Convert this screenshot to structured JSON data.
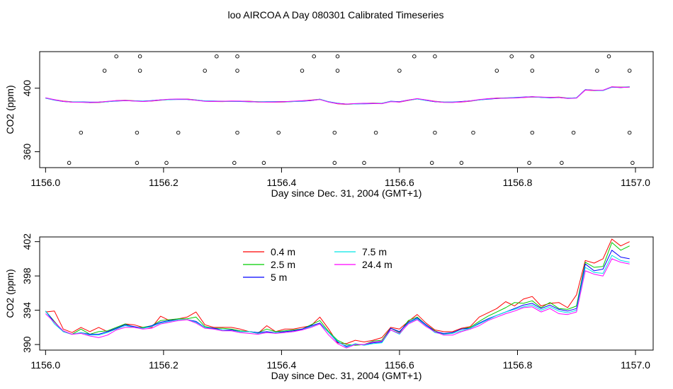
{
  "page": {
    "title": "loo AIRCOA A  Day 080301  Calibrated Timeseries"
  },
  "chart_data": [
    {
      "type": "scatter",
      "xlabel": "Day since Dec. 31, 2004 (GMT+1)",
      "ylabel": "CO2 (ppm)",
      "xlim": [
        1155.99,
        1157.03
      ],
      "ylim": [
        350,
        423
      ],
      "xticks": [
        1156.0,
        1156.2,
        1156.4,
        1156.6,
        1156.8,
        1157.0
      ],
      "xtick_labels": [
        "1156.0",
        "1156.2",
        "1156.4",
        "1156.6",
        "1156.8",
        "1157.0"
      ],
      "yticks": [
        360,
        400
      ],
      "ytick_labels": [
        "360",
        "400"
      ],
      "grid": false,
      "markers": {
        "x": [
          1156.04,
          1156.06,
          1156.1,
          1156.12,
          1156.155,
          1156.155,
          1156.16,
          1156.16,
          1156.205,
          1156.225,
          1156.27,
          1156.29,
          1156.32,
          1156.325,
          1156.325,
          1156.325,
          1156.37,
          1156.395,
          1156.435,
          1156.455,
          1156.49,
          1156.49,
          1156.495,
          1156.495,
          1156.54,
          1156.56,
          1156.6,
          1156.625,
          1156.655,
          1156.66,
          1156.66,
          1156.705,
          1156.725,
          1156.765,
          1156.79,
          1156.82,
          1156.825,
          1156.825,
          1156.825,
          1156.875,
          1156.895,
          1156.935,
          1156.955,
          1156.99,
          1156.99,
          1156.995
        ],
        "y": [
          353,
          372,
          411,
          420,
          353,
          372,
          411,
          420,
          353,
          372,
          411,
          420,
          353,
          372,
          411,
          420,
          353,
          372,
          411,
          420,
          353,
          372,
          411,
          420,
          353,
          372,
          411,
          420,
          353,
          372,
          420,
          353,
          372,
          411,
          420,
          353,
          372,
          411,
          420,
          353,
          372,
          411,
          420,
          372,
          411,
          353
        ]
      },
      "series": [
        {
          "name": "0.4 m",
          "color": "#ff0000"
        },
        {
          "name": "2.5 m",
          "color": "#00cd00"
        },
        {
          "name": "5 m",
          "color": "#0000ff"
        },
        {
          "name": "7.5 m",
          "color": "#00e5e5"
        },
        {
          "name": "24.4 m",
          "color": "#ff00ff"
        }
      ],
      "x": [
        1156.0,
        1156.015,
        1156.03,
        1156.045,
        1156.06,
        1156.075,
        1156.09,
        1156.105,
        1156.12,
        1156.135,
        1156.15,
        1156.165,
        1156.18,
        1156.195,
        1156.21,
        1156.225,
        1156.24,
        1156.255,
        1156.27,
        1156.285,
        1156.3,
        1156.315,
        1156.33,
        1156.345,
        1156.36,
        1156.375,
        1156.39,
        1156.405,
        1156.42,
        1156.435,
        1156.45,
        1156.465,
        1156.48,
        1156.495,
        1156.51,
        1156.525,
        1156.54,
        1156.555,
        1156.57,
        1156.585,
        1156.6,
        1156.615,
        1156.63,
        1156.645,
        1156.66,
        1156.675,
        1156.69,
        1156.705,
        1156.72,
        1156.735,
        1156.75,
        1156.765,
        1156.78,
        1156.795,
        1156.81,
        1156.825,
        1156.84,
        1156.855,
        1156.87,
        1156.885,
        1156.9,
        1156.915,
        1156.93,
        1156.945,
        1156.96,
        1156.975,
        1156.99
      ],
      "values": [
        393.7,
        392.5,
        391.6,
        391.3,
        391.4,
        391.2,
        391.2,
        391.5,
        391.9,
        392.1,
        392.0,
        391.9,
        392.2,
        392.6,
        392.8,
        392.9,
        392.9,
        392.5,
        392.0,
        391.9,
        391.8,
        391.7,
        391.6,
        391.5,
        391.4,
        391.5,
        391.5,
        391.5,
        391.6,
        391.8,
        392.2,
        393.0,
        391.5,
        390.5,
        390.0,
        390.1,
        390.2,
        390.3,
        390.4,
        391.8,
        391.5,
        392.5,
        393.2,
        392.3,
        391.5,
        391.2,
        391.3,
        391.6,
        392.0,
        392.6,
        393.1,
        393.5,
        393.8,
        394.1,
        394.4,
        394.6,
        394.2,
        393.9,
        394.1,
        393.7,
        394.0,
        399.1,
        398.7,
        398.5,
        400.6,
        400.4,
        400.8
      ]
    },
    {
      "type": "line",
      "xlabel": "Day since Dec. 31, 2004 (GMT+1)",
      "ylabel": "CO2 (ppm)",
      "xlim": [
        1155.99,
        1157.03
      ],
      "ylim": [
        389.35,
        402.55
      ],
      "xticks": [
        1156.0,
        1156.2,
        1156.4,
        1156.6,
        1156.8,
        1157.0
      ],
      "xtick_labels": [
        "1156.0",
        "1156.2",
        "1156.4",
        "1156.6",
        "1156.8",
        "1157.0"
      ],
      "yticks": [
        390,
        394,
        398,
        402
      ],
      "ytick_labels": [
        "390",
        "394",
        "398",
        "402"
      ],
      "grid": false,
      "legend": {
        "position": "top-left-center",
        "entries": [
          "0.4 m",
          "2.5 m",
          "5 m",
          "7.5 m",
          "24.4 m"
        ]
      },
      "x": [
        1156.0,
        1156.015,
        1156.03,
        1156.045,
        1156.06,
        1156.075,
        1156.09,
        1156.105,
        1156.12,
        1156.135,
        1156.15,
        1156.165,
        1156.18,
        1156.195,
        1156.21,
        1156.225,
        1156.24,
        1156.255,
        1156.27,
        1156.285,
        1156.3,
        1156.315,
        1156.33,
        1156.345,
        1156.36,
        1156.375,
        1156.39,
        1156.405,
        1156.42,
        1156.435,
        1156.45,
        1156.465,
        1156.48,
        1156.495,
        1156.51,
        1156.525,
        1156.54,
        1156.555,
        1156.57,
        1156.585,
        1156.6,
        1156.615,
        1156.63,
        1156.645,
        1156.66,
        1156.675,
        1156.69,
        1156.705,
        1156.72,
        1156.735,
        1156.75,
        1156.765,
        1156.78,
        1156.795,
        1156.81,
        1156.825,
        1156.84,
        1156.855,
        1156.87,
        1156.885,
        1156.9,
        1156.915,
        1156.93,
        1156.945,
        1156.96,
        1156.975,
        1156.99
      ],
      "series": [
        {
          "name": "0.4 m",
          "color": "#ff0000",
          "values": [
            393.8,
            393.9,
            391.8,
            391.4,
            392.0,
            391.5,
            392.0,
            391.5,
            391.8,
            392.4,
            392.3,
            392.0,
            392.0,
            393.3,
            392.8,
            393.0,
            393.2,
            393.8,
            392.3,
            392.0,
            392.0,
            392.0,
            391.8,
            391.5,
            391.3,
            392.2,
            391.5,
            391.8,
            391.8,
            392.0,
            392.2,
            393.2,
            391.8,
            390.2,
            390.1,
            390.5,
            390.3,
            390.5,
            390.8,
            392.0,
            391.8,
            392.7,
            393.5,
            392.5,
            391.7,
            391.5,
            391.5,
            391.9,
            392.1,
            393.2,
            393.7,
            394.2,
            395.0,
            394.5,
            395.3,
            395.6,
            394.5,
            394.8,
            394.9,
            394.3,
            395.8,
            399.8,
            399.5,
            400.0,
            402.3,
            401.5,
            402.0
          ]
        },
        {
          "name": "2.5 m",
          "color": "#00cd00",
          "values": [
            393.9,
            392.7,
            391.5,
            391.2,
            391.8,
            391.2,
            391.5,
            391.6,
            392.0,
            392.4,
            392.0,
            392.0,
            392.2,
            392.8,
            392.9,
            393.0,
            393.0,
            393.2,
            392.1,
            391.9,
            391.9,
            391.8,
            391.6,
            391.5,
            391.4,
            391.8,
            391.5,
            391.6,
            391.7,
            391.8,
            392.3,
            392.8,
            391.5,
            390.5,
            390.0,
            389.9,
            390.0,
            390.4,
            390.5,
            391.9,
            391.4,
            392.8,
            393.2,
            392.3,
            391.6,
            391.2,
            391.4,
            391.8,
            392.0,
            392.7,
            393.3,
            393.8,
            394.3,
            394.9,
            394.8,
            395.1,
            394.3,
            394.9,
            394.2,
            394.1,
            394.5,
            399.6,
            399.0,
            399.1,
            401.9,
            401.0,
            401.5
          ]
        },
        {
          "name": "5 m",
          "color": "#0000ff",
          "values": [
            393.9,
            392.6,
            391.5,
            391.2,
            391.4,
            391.2,
            391.2,
            391.5,
            391.9,
            392.3,
            392.1,
            391.9,
            392.2,
            392.6,
            392.8,
            392.9,
            392.9,
            392.7,
            392.0,
            391.9,
            391.7,
            391.7,
            391.5,
            391.5,
            391.4,
            391.5,
            391.4,
            391.5,
            391.6,
            391.8,
            392.2,
            392.5,
            391.4,
            390.3,
            389.8,
            390.0,
            390.0,
            390.2,
            390.3,
            391.9,
            391.5,
            392.6,
            393.1,
            392.3,
            391.5,
            391.3,
            391.4,
            391.8,
            391.9,
            392.5,
            393.0,
            393.4,
            393.8,
            394.2,
            394.6,
            394.8,
            394.2,
            394.6,
            394.1,
            393.9,
            394.2,
            399.4,
            398.6,
            398.8,
            401.0,
            400.2,
            400.0
          ]
        },
        {
          "name": "7.5 m",
          "color": "#00e5e5",
          "values": [
            393.9,
            392.4,
            391.5,
            391.2,
            391.4,
            391.1,
            391.1,
            391.4,
            391.8,
            392.2,
            392.0,
            391.9,
            392.1,
            392.5,
            392.7,
            392.9,
            392.9,
            392.6,
            392.0,
            391.8,
            391.7,
            391.6,
            391.5,
            391.5,
            391.3,
            391.4,
            391.4,
            391.4,
            391.5,
            391.7,
            392.1,
            392.4,
            391.4,
            390.4,
            389.7,
            390.1,
            389.9,
            390.1,
            390.2,
            391.7,
            391.2,
            392.5,
            393.0,
            392.2,
            391.4,
            391.2,
            391.3,
            391.6,
            391.9,
            392.4,
            392.9,
            393.4,
            393.8,
            394.1,
            394.4,
            394.6,
            394.0,
            394.4,
            393.9,
            393.7,
            394.0,
            399.0,
            398.4,
            398.3,
            400.4,
            399.8,
            399.6
          ]
        },
        {
          "name": "24.4 m",
          "color": "#ff00ff",
          "values": [
            393.6,
            392.6,
            391.6,
            391.2,
            391.3,
            391.0,
            390.8,
            391.1,
            391.7,
            392.0,
            392.0,
            391.8,
            391.9,
            392.4,
            392.6,
            392.8,
            392.9,
            392.5,
            391.9,
            391.8,
            391.6,
            391.6,
            391.4,
            391.3,
            391.2,
            391.4,
            391.3,
            391.4,
            391.5,
            391.7,
            392.0,
            392.4,
            391.1,
            390.1,
            389.6,
            390.0,
            390.0,
            390.3,
            390.4,
            391.7,
            391.3,
            392.4,
            392.9,
            392.1,
            391.5,
            391.1,
            391.1,
            391.5,
            391.8,
            392.2,
            392.8,
            393.2,
            393.6,
            393.9,
            394.3,
            394.4,
            393.8,
            394.2,
            393.6,
            393.5,
            393.8,
            398.6,
            398.2,
            398.0,
            400.0,
            399.6,
            399.4
          ]
        }
      ]
    }
  ]
}
